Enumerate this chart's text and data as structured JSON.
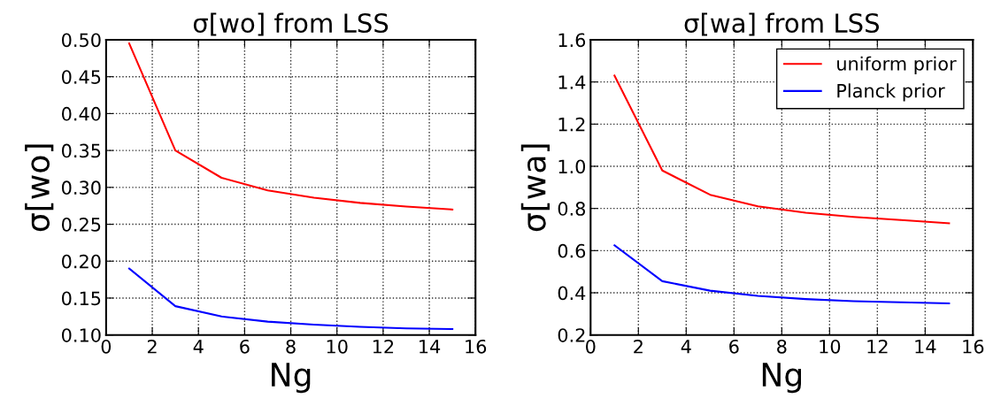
{
  "chart_data": [
    {
      "type": "line",
      "title": "σ[wo] from LSS",
      "xlabel": "Ng",
      "ylabel": "σ[wo]",
      "x": [
        1,
        3,
        5,
        7,
        9,
        11,
        13,
        15
      ],
      "xlim": [
        0,
        16
      ],
      "xticks": [
        0,
        2,
        4,
        6,
        8,
        10,
        12,
        14,
        16
      ],
      "ylim": [
        0.1,
        0.5
      ],
      "yticks": [
        {
          "value": 0.1,
          "label": "0.10"
        },
        {
          "value": 0.15,
          "label": "0.15"
        },
        {
          "value": 0.2,
          "label": "0.20"
        },
        {
          "value": 0.25,
          "label": "0.25"
        },
        {
          "value": 0.3,
          "label": "0.30"
        },
        {
          "value": 0.35,
          "label": "0.35"
        },
        {
          "value": 0.4,
          "label": "0.40"
        },
        {
          "value": 0.45,
          "label": "0.45"
        },
        {
          "value": 0.5,
          "label": "0.50"
        }
      ],
      "grid": true,
      "legend": false,
      "line_style": "solid",
      "series": [
        {
          "color": "#ff0000",
          "values": [
            0.495,
            0.35,
            0.313,
            0.296,
            0.286,
            0.279,
            0.274,
            0.27
          ]
        },
        {
          "color": "#0000ff",
          "values": [
            0.19,
            0.139,
            0.125,
            0.118,
            0.114,
            0.111,
            0.109,
            0.108
          ]
        }
      ]
    },
    {
      "type": "line",
      "title": "σ[wa] from LSS",
      "xlabel": "Ng",
      "ylabel": "σ[wa]",
      "x": [
        1,
        3,
        5,
        7,
        9,
        11,
        13,
        15
      ],
      "xlim": [
        0,
        16
      ],
      "xticks": [
        0,
        2,
        4,
        6,
        8,
        10,
        12,
        14,
        16
      ],
      "ylim": [
        0.2,
        1.6
      ],
      "yticks": [
        0.2,
        0.4,
        0.6,
        0.8,
        {
          "value": 1.0,
          "label": "1.0"
        },
        1.2,
        1.4,
        1.6
      ],
      "grid": true,
      "legend": "top right",
      "line_style": "solid",
      "series": [
        {
          "name": "uniform prior",
          "color": "#ff0000",
          "values": [
            1.43,
            0.98,
            0.865,
            0.81,
            0.78,
            0.76,
            0.745,
            0.73
          ]
        },
        {
          "name": "Planck prior",
          "color": "#0000ff",
          "values": [
            0.625,
            0.455,
            0.41,
            0.385,
            0.37,
            0.36,
            0.355,
            0.35
          ]
        }
      ]
    }
  ]
}
